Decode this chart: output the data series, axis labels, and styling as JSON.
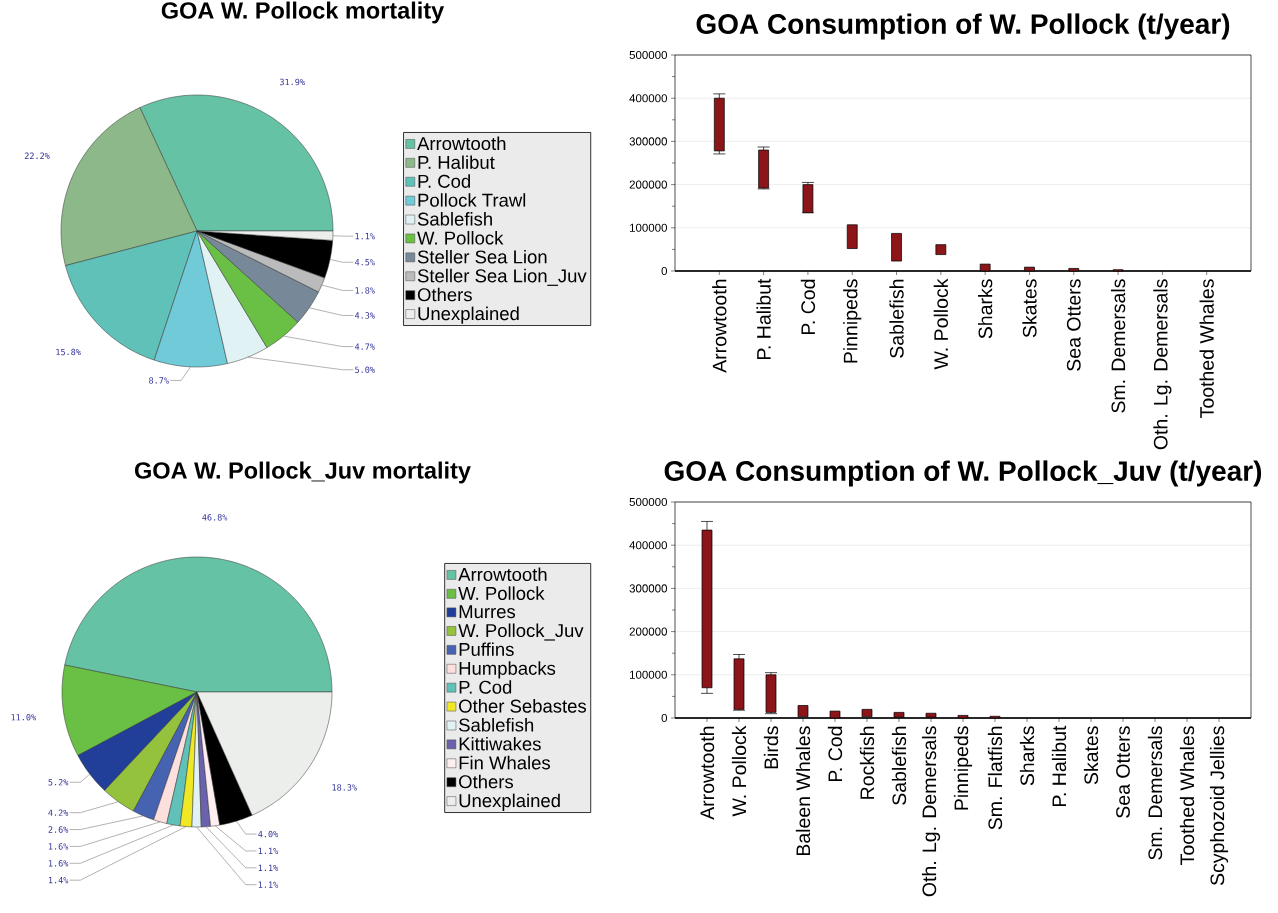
{
  "chart_data": [
    {
      "type": "pie",
      "title": "GOA W. Pollock mortality",
      "legend": "right",
      "categories": [
        "Arrowtooth",
        "P. Halibut",
        "P. Cod",
        "Pollock Trawl",
        "Sablefish",
        "W. Pollock",
        "Steller Sea Lion",
        "Steller Sea Lion_Juv",
        "Others",
        "Unexplained"
      ],
      "values": [
        31.9,
        22.2,
        15.8,
        8.7,
        5.0,
        4.7,
        4.3,
        1.8,
        4.5,
        1.1
      ],
      "value_labels": [
        "31.9%",
        "22.2%",
        "15.8%",
        "8.7%",
        "5.0%",
        "4.7%",
        "4.3%",
        "1.8%",
        "4.5%",
        "1.1%"
      ],
      "colors": [
        "#66c2a5",
        "#8db88a",
        "#5fc1b8",
        "#70cad8",
        "#e0f2f4",
        "#6abf45",
        "#778899",
        "#bbbbbb",
        "#000000",
        "#eceeec"
      ]
    },
    {
      "type": "bar",
      "title": "GOA Consumption of W. Pollock (t/year)",
      "color": "#8b1519",
      "grid": "y",
      "categories": [
        "Arrowtooth",
        "P. Halibut",
        "P. Cod",
        "Pinnipeds",
        "Sablefish",
        "W. Pollock",
        "Sharks",
        "Skates",
        "Sea Otters",
        "Sm. Demersals",
        "Oth. Lg. Demersals",
        "Toothed Whales"
      ],
      "base": [
        278000,
        192000,
        135000,
        52000,
        23000,
        38000,
        0,
        0,
        0,
        0,
        null,
        null
      ],
      "values": [
        122000,
        88000,
        65000,
        55000,
        64000,
        23000,
        16000,
        9000,
        6000,
        3000,
        null,
        null
      ],
      "errors": [
        [
          271000,
          410000
        ],
        [
          190000,
          287000
        ],
        [
          135000,
          205000
        ],
        null,
        null,
        null,
        null,
        null,
        null,
        null,
        null,
        null
      ],
      "ylim": [
        0,
        500000
      ],
      "yticks": [
        0,
        {
          "value": 50000,
          "label": null
        },
        100000,
        {
          "value": 150000,
          "label": null
        },
        200000,
        {
          "value": 250000,
          "label": null
        },
        300000,
        {
          "value": 350000,
          "label": null
        },
        400000,
        {
          "value": 450000,
          "label": null
        },
        500000
      ]
    },
    {
      "type": "pie",
      "title": "GOA W. Pollock_Juv mortality",
      "legend": "right",
      "categories": [
        "Arrowtooth",
        "W. Pollock",
        "Murres",
        "W. Pollock_Juv",
        "Puffins",
        "Humpbacks",
        "P. Cod",
        "Other Sebastes",
        "Sablefish",
        "Kittiwakes",
        "Fin Whales",
        "Others",
        "Unexplained"
      ],
      "values": [
        46.8,
        11.0,
        5.2,
        4.2,
        2.6,
        1.6,
        1.6,
        1.4,
        1.1,
        1.1,
        1.1,
        4.0,
        18.3
      ],
      "value_labels": [
        "46.8%",
        "11.0%",
        "5.2%",
        "4.2%",
        "2.6%",
        "1.6%",
        "1.6%",
        "1.4%",
        "1.1%",
        "1.1%",
        "1.1%",
        "4.0%",
        "18.3%"
      ],
      "colors": [
        "#66c2a5",
        "#6abf45",
        "#213e99",
        "#94c23c",
        "#4563b0",
        "#fde0de",
        "#5fc1b8",
        "#f0e824",
        "#e0f2f4",
        "#6a62ad",
        "#fdeef0",
        "#000000",
        "#eceeec"
      ]
    },
    {
      "type": "bar",
      "title": "GOA Consumption of W. Pollock_Juv (t/year)",
      "color": "#8b1519",
      "grid": "y",
      "categories": [
        "Arrowtooth",
        "W. Pollock",
        "Birds",
        "Baleen Whales",
        "P. Cod",
        "Rockfish",
        "Sablefish",
        "Oth. Lg. Demersals",
        "Pinnipeds",
        "Sm. Flatfish",
        "Sharks",
        "P. Halibut",
        "Skates",
        "Sea Otters",
        "Sm. Demersals",
        "Toothed Whales",
        "Scyphozoid Jellies"
      ],
      "base": [
        70000,
        20000,
        13000,
        3000,
        0,
        3000,
        2000,
        2000,
        0,
        0,
        null,
        null,
        null,
        null,
        null,
        null,
        null
      ],
      "values": [
        365000,
        117000,
        87000,
        26000,
        16000,
        17000,
        11000,
        9000,
        6000,
        4000,
        null,
        null,
        null,
        null,
        null,
        null,
        null
      ],
      "errors": [
        [
          57000,
          455000
        ],
        [
          18000,
          147000
        ],
        [
          10000,
          105000
        ],
        null,
        null,
        null,
        null,
        null,
        null,
        null,
        null,
        null,
        null,
        null,
        null,
        null,
        null
      ],
      "ylim": [
        0,
        500000
      ],
      "yticks": [
        0,
        {
          "value": 50000,
          "label": null
        },
        100000,
        {
          "value": 150000,
          "label": null
        },
        200000,
        {
          "value": 250000,
          "label": null
        },
        300000,
        {
          "value": 350000,
          "label": null
        },
        400000,
        {
          "value": 450000,
          "label": null
        },
        500000
      ]
    }
  ]
}
